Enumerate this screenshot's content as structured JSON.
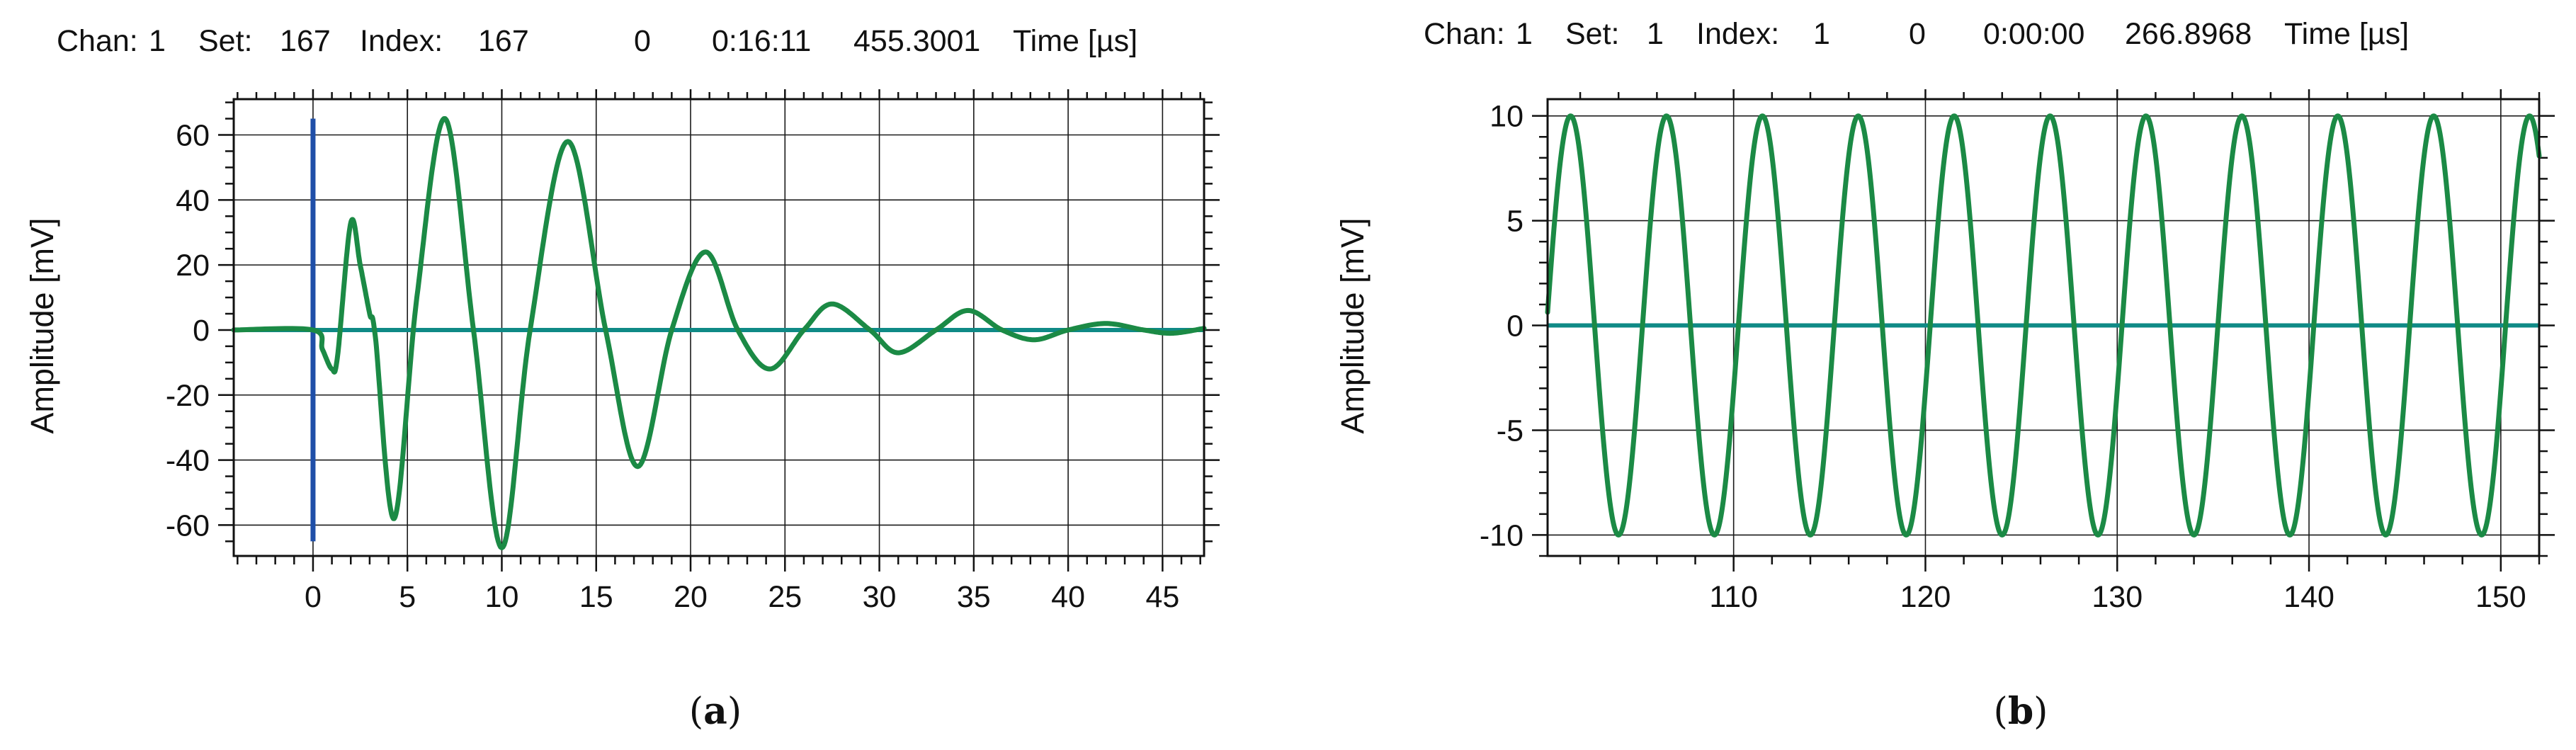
{
  "charts": [
    {
      "header": {
        "chan_label": "Chan:",
        "chan": "1",
        "set_label": "Set:",
        "set": "167",
        "index_label": "Index:",
        "index": "167",
        "zero": "0",
        "clock": "0:16:11",
        "reading": "455.3001",
        "time_unit": "Time [µs]"
      },
      "caption": {
        "open": "(",
        "letter": "a",
        "close": ")"
      }
    },
    {
      "header": {
        "chan_label": "Chan:",
        "chan": "1",
        "set_label": "Set:",
        "set": "1",
        "index_label": "Index:",
        "index": "1",
        "zero": "0",
        "clock": "0:00:00",
        "reading": "266.8968",
        "time_unit": "Time [µs]"
      },
      "caption": {
        "open": "(",
        "letter": "b",
        "close": ")"
      }
    }
  ],
  "chart_data": [
    {
      "type": "line",
      "title": "",
      "xlabel": "",
      "ylabel": "Amplitude [mV]",
      "xlim": [
        -4.2,
        47.2
      ],
      "ylim": [
        -69.5,
        71
      ],
      "xticks": [
        0,
        5,
        10,
        15,
        20,
        25,
        30,
        35,
        40,
        45
      ],
      "yticks": [
        60,
        40,
        20,
        0,
        -20,
        -40,
        -60
      ],
      "x_minor_step": 1,
      "y_minor_step": 5,
      "grid": true,
      "trigger_marker": {
        "x": 0,
        "y_range": [
          -65,
          65
        ],
        "color": "#1f4fa8"
      },
      "zero_line_color": "#0f8a86",
      "series": [
        {
          "color": "#1b8a45",
          "x": [
            -4.2,
            0,
            0.5,
            1,
            1.3,
            2,
            2.5,
            3,
            3.3,
            4.3,
            5.5,
            7,
            8.5,
            10,
            11.5,
            13.5,
            15.5,
            17.2,
            19,
            20.8,
            22.5,
            24.2,
            26,
            27.5,
            29.5,
            31,
            33,
            34.7,
            36.5,
            38.2,
            40,
            42,
            44,
            45.5,
            47.2
          ],
          "y": [
            0,
            0,
            -6,
            -12,
            -8,
            33,
            20,
            5,
            -2,
            -58,
            10,
            65,
            0,
            -67,
            0,
            58,
            0,
            -42,
            0,
            24,
            0,
            -12,
            0,
            8,
            0,
            -7,
            0,
            6,
            0,
            -3,
            0,
            2,
            0,
            -1,
            0.5
          ]
        }
      ]
    },
    {
      "type": "line",
      "title": "",
      "xlabel": "",
      "ylabel": "Amplitude [mV]",
      "xlim": [
        100.3,
        152
      ],
      "ylim": [
        -11,
        10.8
      ],
      "xticks": [
        110,
        120,
        130,
        140,
        150
      ],
      "yticks": [
        10,
        5,
        0,
        -5,
        -10
      ],
      "x_minor_step": 2,
      "y_minor_step": 1,
      "grid": true,
      "zero_line_color": "#0f8a86",
      "series": [
        {
          "color": "#1b8a45",
          "waveform": "sine",
          "amplitude": 10,
          "period": 5,
          "peak_at": 101.5,
          "x_range": [
            100.3,
            152
          ]
        }
      ]
    }
  ]
}
